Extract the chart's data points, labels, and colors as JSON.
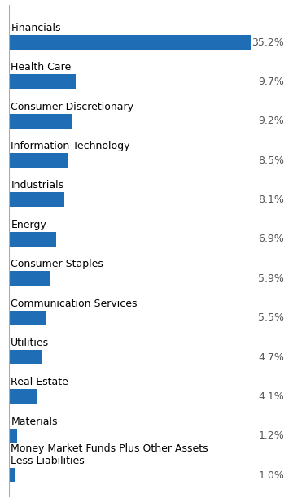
{
  "categories": [
    "Financials",
    "Health Care",
    "Consumer Discretionary",
    "Information Technology",
    "Industrials",
    "Energy",
    "Consumer Staples",
    "Communication Services",
    "Utilities",
    "Real Estate",
    "Materials",
    "Money Market Funds Plus Other Assets\nLess Liabilities"
  ],
  "values": [
    35.2,
    9.7,
    9.2,
    8.5,
    8.1,
    6.9,
    5.9,
    5.5,
    4.7,
    4.1,
    1.2,
    1.0
  ],
  "bar_color": "#1f6eb5",
  "label_color": "#000000",
  "value_color": "#555555",
  "background_color": "#ffffff",
  "bar_height": 0.38,
  "xlim": [
    0,
    40
  ],
  "label_fontsize": 9.0,
  "value_fontsize": 9.0,
  "left_line_color": "#aaaaaa"
}
